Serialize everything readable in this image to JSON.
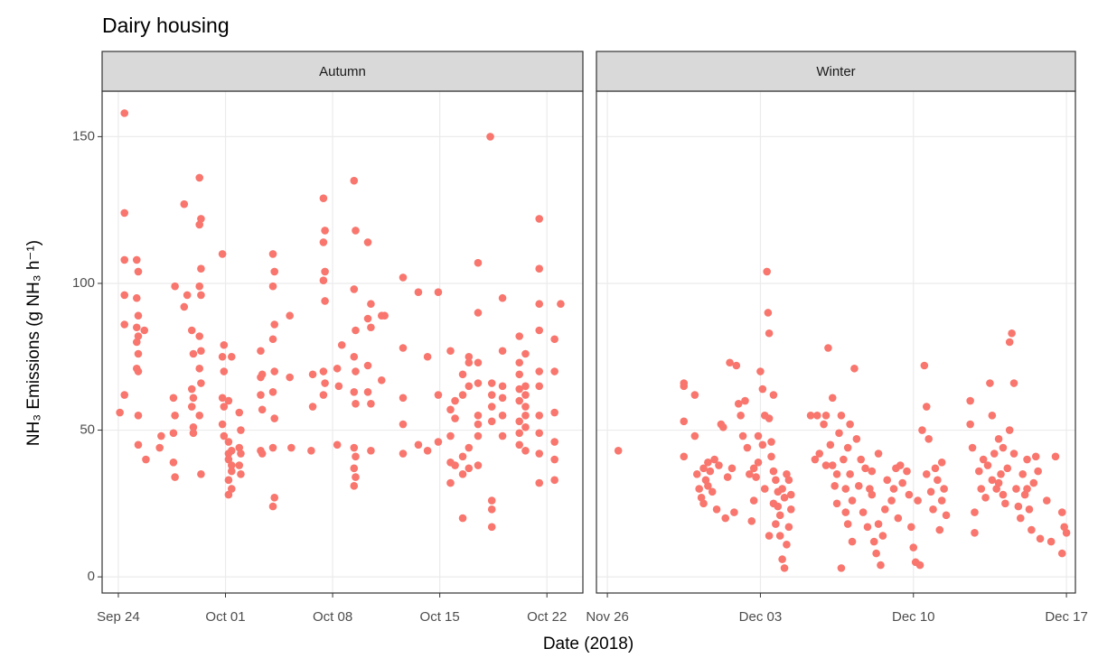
{
  "chart_data": {
    "type": "scatter",
    "title": "Dairy housing",
    "x_label": "Date (2018)",
    "y_label": "NH₃ Emissions (g NH₃ h⁻¹)",
    "color": "#F8766D",
    "grid": true,
    "ylim": [
      -5.5,
      165.5
    ],
    "yticks": [
      0,
      50,
      100,
      150
    ],
    "facets": [
      {
        "strip": "Autumn",
        "xlim": [
          265.94,
          297.35
        ],
        "xticks": [
          {
            "value": 267,
            "label": "Sep 24"
          },
          {
            "value": 274,
            "label": "Oct 01"
          },
          {
            "value": 281,
            "label": "Oct 08"
          },
          {
            "value": 288,
            "label": "Oct 15"
          },
          {
            "value": 295,
            "label": "Oct 22"
          }
        ],
        "x": [
          267.4,
          267.4,
          267.4,
          267.4,
          267.4,
          267.4,
          267.1,
          268.2,
          268.2,
          268.2,
          268.2,
          268.2,
          268.3,
          268.3,
          268.3,
          268.3,
          268.3,
          268.3,
          268.3,
          268.8,
          268.7,
          269.7,
          269.8,
          270.6,
          270.6,
          270.6,
          270.7,
          270.7,
          270.7,
          271.3,
          271.3,
          271.5,
          271.8,
          271.8,
          271.8,
          271.9,
          271.9,
          271.9,
          271.9,
          272.3,
          272.3,
          272.3,
          272.3,
          272.3,
          272.3,
          272.4,
          272.4,
          272.4,
          272.4,
          272.4,
          272.4,
          273.8,
          273.8,
          273.8,
          273.8,
          273.9,
          273.9,
          273.9,
          273.9,
          274.2,
          274.2,
          274.2,
          274.2,
          274.2,
          274.2,
          274.4,
          274.4,
          274.4,
          274.4,
          274.4,
          274.9,
          274.9,
          274.9,
          275.0,
          275.0,
          275.0,
          276.3,
          276.3,
          276.3,
          276.3,
          276.4,
          276.4,
          276.4,
          277.1,
          277.1,
          277.1,
          277.1,
          277.1,
          277.1,
          277.2,
          277.2,
          277.2,
          277.2,
          277.2,
          278.2,
          278.2,
          278.3,
          279.7,
          279.7,
          279.6,
          280.4,
          280.4,
          280.4,
          280.4,
          280.4,
          280.5,
          280.5,
          280.5,
          280.5,
          281.3,
          281.3,
          281.4,
          281.6,
          282.4,
          282.4,
          282.4,
          282.4,
          282.4,
          282.4,
          282.4,
          282.5,
          282.5,
          282.5,
          282.5,
          282.5,
          282.5,
          283.3,
          283.3,
          283.3,
          283.3,
          283.5,
          283.5,
          283.5,
          283.5,
          284.2,
          284.2,
          284.4,
          285.6,
          285.6,
          285.6,
          285.6,
          285.6,
          286.6,
          286.6,
          287.2,
          287.2,
          287.9,
          287.9,
          287.9,
          288.7,
          288.7,
          288.7,
          288.7,
          288.7,
          289.0,
          289.0,
          289.0,
          289.5,
          289.5,
          289.5,
          289.5,
          289.5,
          289.9,
          289.9,
          289.9,
          289.9,
          289.9,
          290.5,
          290.5,
          290.5,
          290.5,
          290.5,
          290.5,
          290.5,
          290.5,
          291.3,
          291.4,
          291.4,
          291.4,
          291.4,
          291.4,
          291.4,
          291.4,
          292.1,
          292.1,
          292.1,
          292.1,
          292.1,
          292.1,
          293.2,
          293.2,
          293.2,
          293.2,
          293.2,
          293.2,
          293.2,
          293.2,
          293.6,
          293.6,
          293.6,
          293.6,
          293.6,
          293.6,
          293.6,
          294.5,
          294.5,
          294.5,
          294.5,
          294.5,
          294.5,
          294.5,
          294.5,
          294.5,
          294.5,
          295.5,
          295.5,
          295.5,
          295.5,
          295.5,
          295.5,
          295.9
        ],
        "y": [
          158,
          124,
          108,
          96,
          86,
          62,
          56,
          108,
          95,
          85,
          80,
          71,
          104,
          89,
          82,
          76,
          70,
          55,
          45,
          40,
          84,
          44,
          48,
          61,
          49,
          39,
          55,
          34,
          99,
          127,
          92,
          96,
          84,
          64,
          58,
          76,
          61,
          49,
          51,
          136,
          120,
          99,
          82,
          71,
          55,
          122,
          105,
          96,
          77,
          66,
          35,
          110,
          75,
          61,
          52,
          79,
          70,
          58,
          48,
          46,
          40,
          33,
          28,
          42,
          60,
          43,
          36,
          30,
          38,
          75,
          44,
          38,
          56,
          42,
          35,
          50,
          77,
          62,
          43,
          68,
          69,
          57,
          42,
          110,
          99,
          81,
          63,
          44,
          24,
          104,
          86,
          70,
          54,
          27,
          89,
          68,
          44,
          69,
          58,
          43,
          129,
          114,
          101,
          70,
          62,
          118,
          104,
          94,
          66,
          71,
          45,
          65,
          79,
          135,
          98,
          75,
          63,
          44,
          37,
          31,
          118,
          84,
          70,
          59,
          41,
          34,
          114,
          88,
          72,
          63,
          93,
          85,
          59,
          43,
          89,
          67,
          89,
          102,
          78,
          61,
          52,
          42,
          97,
          45,
          43,
          75,
          97,
          62,
          46,
          77,
          57,
          48,
          39,
          32,
          60,
          54,
          38,
          20,
          41,
          35,
          62,
          69,
          75,
          73,
          65,
          44,
          37,
          107,
          90,
          73,
          66,
          55,
          52,
          48,
          38,
          150,
          66,
          62,
          58,
          53,
          26,
          23,
          17,
          95,
          77,
          65,
          61,
          55,
          48,
          82,
          73,
          69,
          64,
          60,
          53,
          49,
          45,
          65,
          62,
          58,
          43,
          51,
          55,
          76,
          122,
          105,
          93,
          84,
          70,
          65,
          55,
          49,
          42,
          32,
          81,
          70,
          56,
          46,
          40,
          33,
          93
        ]
      },
      {
        "strip": "Winter",
        "xlim": [
          329.5,
          351.41
        ],
        "xticks": [
          {
            "value": 330,
            "label": "Nov 26"
          },
          {
            "value": 337,
            "label": "Dec 03"
          },
          {
            "value": 344,
            "label": "Dec 10"
          },
          {
            "value": 351,
            "label": "Dec 17"
          }
        ],
        "x": [
          330.5,
          333.5,
          333.5,
          333.5,
          333.5,
          334.0,
          334.0,
          334.1,
          334.2,
          334.3,
          334.4,
          334.5,
          334.6,
          334.7,
          334.8,
          334.9,
          335.0,
          334.4,
          334.6,
          335.1,
          335.2,
          335.3,
          335.4,
          335.5,
          335.6,
          335.7,
          335.8,
          335.9,
          336.0,
          336.1,
          336.2,
          336.3,
          336.4,
          336.5,
          336.6,
          336.7,
          336.8,
          336.9,
          337.0,
          337.1,
          337.2,
          337.2,
          337.3,
          337.35,
          337.4,
          337.4,
          337.5,
          337.5,
          337.6,
          337.6,
          337.7,
          337.7,
          337.8,
          337.8,
          337.9,
          337.9,
          338.0,
          338.0,
          338.1,
          338.1,
          338.2,
          338.2,
          338.3,
          338.3,
          338.4,
          338.4,
          337.1,
          336.9,
          336.7,
          337.4,
          337.6,
          339.3,
          339.5,
          339.7,
          339.9,
          340.0,
          340.1,
          340.2,
          340.3,
          340.3,
          340.4,
          340.5,
          340.5,
          340.6,
          340.7,
          340.7,
          340.8,
          340.9,
          341.0,
          341.0,
          341.1,
          341.2,
          341.2,
          341.3,
          341.4,
          341.5,
          341.6,
          341.7,
          341.8,
          341.9,
          342.0,
          342.1,
          342.2,
          342.3,
          342.4,
          342.5,
          342.6,
          342.7,
          342.8,
          343.0,
          343.1,
          343.2,
          343.3,
          343.4,
          343.5,
          341.1,
          340.9,
          342.1,
          342.4,
          340.0,
          339.6,
          343.7,
          343.8,
          343.9,
          344.0,
          344.1,
          344.2,
          344.3,
          344.4,
          344.5,
          344.6,
          344.7,
          344.8,
          344.9,
          345.0,
          345.1,
          345.2,
          345.3,
          345.4,
          345.5,
          344.6,
          345.3,
          346.6,
          346.6,
          346.7,
          346.8,
          346.8,
          347.0,
          347.1,
          347.2,
          347.3,
          347.4,
          347.5,
          347.6,
          347.6,
          347.7,
          347.8,
          347.9,
          348.0,
          348.1,
          348.2,
          348.3,
          348.4,
          348.4,
          348.5,
          348.6,
          348.6,
          348.7,
          348.8,
          348.9,
          349.0,
          349.1,
          349.2,
          349.3,
          349.4,
          349.5,
          349.6,
          349.7,
          349.8,
          350.1,
          350.3,
          350.5,
          350.8,
          350.8,
          350.9,
          351.0,
          348.1,
          347.9,
          349.2
        ],
        "y": [
          43,
          66,
          65,
          53,
          41,
          62,
          48,
          35,
          30,
          27,
          25,
          33,
          39,
          36,
          29,
          40,
          23,
          37,
          31,
          38,
          52,
          51,
          20,
          34,
          73,
          37,
          22,
          72,
          59,
          55,
          48,
          60,
          44,
          35,
          19,
          26,
          34,
          39,
          70,
          64,
          55,
          30,
          104,
          90,
          83,
          54,
          46,
          41,
          36,
          25,
          18,
          33,
          29,
          24,
          21,
          14,
          30,
          6,
          3,
          27,
          35,
          11,
          17,
          33,
          28,
          23,
          45,
          48,
          37,
          14,
          62,
          55,
          40,
          42,
          52,
          55,
          78,
          45,
          38,
          61,
          31,
          35,
          25,
          49,
          55,
          3,
          40,
          22,
          18,
          44,
          35,
          26,
          12,
          71,
          47,
          31,
          40,
          22,
          37,
          17,
          30,
          28,
          12,
          8,
          18,
          4,
          14,
          23,
          33,
          26,
          30,
          37,
          20,
          38,
          32,
          52,
          30,
          36,
          42,
          38,
          55,
          36,
          28,
          17,
          10,
          5,
          26,
          4,
          50,
          72,
          58,
          47,
          29,
          23,
          37,
          33,
          16,
          26,
          30,
          21,
          35,
          39,
          60,
          52,
          44,
          22,
          15,
          36,
          30,
          40,
          27,
          38,
          66,
          55,
          33,
          42,
          30,
          47,
          35,
          28,
          25,
          37,
          50,
          80,
          83,
          66,
          42,
          30,
          24,
          20,
          35,
          28,
          40,
          23,
          16,
          32,
          41,
          36,
          13,
          26,
          12,
          41,
          8,
          22,
          17,
          15,
          44,
          32,
          30
        ]
      }
    ]
  }
}
